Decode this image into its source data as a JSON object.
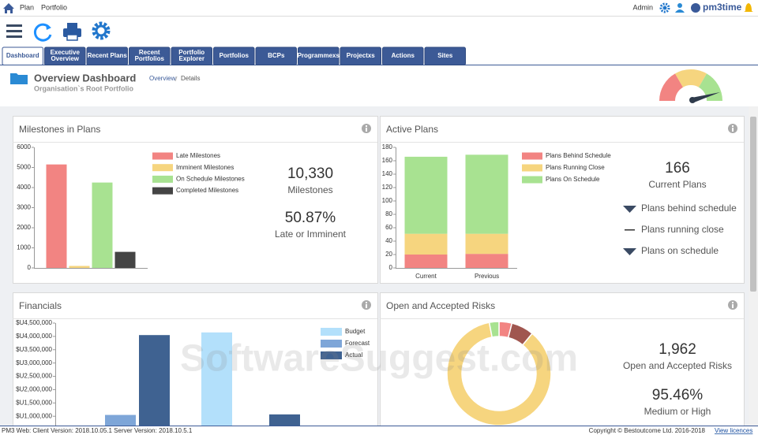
{
  "top_bar": {
    "links": [
      "Plan",
      "Portfolio"
    ],
    "user": "Admin",
    "logo": "pm3time"
  },
  "tabs": [
    [
      "Dashboard"
    ],
    [
      "Executive",
      "Overview"
    ],
    [
      "Recent Plans"
    ],
    [
      "Recent",
      "Portfolios"
    ],
    [
      "Portfolio",
      "Explorer"
    ],
    [
      "Portfolios"
    ],
    [
      "BCPs"
    ],
    [
      "Programmexs"
    ],
    [
      "Projectxs"
    ],
    [
      "Actions"
    ],
    [
      "Sites"
    ]
  ],
  "header": {
    "title": "Overview Dashboard",
    "subtitle": "Organisation`s Root Portfolio",
    "breadcrumb": [
      "Overview",
      "Details"
    ]
  },
  "chart_data": [
    {
      "type": "bar",
      "title": "Milestones in Plans",
      "categories": [
        null
      ],
      "series": [
        {
          "name": "Late Milestones",
          "color": "#f28482",
          "values": [
            5150
          ]
        },
        {
          "name": "Imminent Milestones",
          "color": "#f6d57f",
          "values": [
            100
          ]
        },
        {
          "name": "On Schedule Milestones",
          "color": "#a8e291",
          "values": [
            4250
          ]
        },
        {
          "name": "Completed Milestones",
          "color": "#444444",
          "values": [
            800
          ]
        }
      ],
      "ylim": [
        0,
        6000
      ],
      "yticks": [
        0,
        1000,
        2000,
        3000,
        4000,
        5000,
        6000
      ],
      "legend": "right",
      "annotations": [
        {
          "value": "10,330",
          "label": "Milestones"
        },
        {
          "value": "50.87%",
          "label": "Late or Imminent"
        }
      ]
    },
    {
      "type": "bar",
      "stacked": true,
      "title": "Active Plans",
      "categories": [
        "Current",
        "Previous"
      ],
      "series": [
        {
          "name": "Plans Behind Schedule",
          "color": "#f28482",
          "values": [
            20,
            21
          ]
        },
        {
          "name": "Plans Running Close",
          "color": "#f6d57f",
          "values": [
            31,
            30
          ]
        },
        {
          "name": "Plans On Schedule",
          "color": "#a8e291",
          "values": [
            115,
            118
          ]
        }
      ],
      "ylim": [
        0,
        180
      ],
      "yticks": [
        0,
        20,
        40,
        60,
        80,
        100,
        120,
        140,
        160,
        180
      ],
      "legend": "right",
      "annotations": [
        {
          "value": "166",
          "label": "Current Plans"
        }
      ],
      "status": [
        "Plans behind schedule",
        "Plans running close",
        "Plans on schedule"
      ]
    },
    {
      "type": "bar",
      "title": "Financials",
      "categories": [
        null,
        null
      ],
      "series": [
        {
          "name": "Budget",
          "color": "#b3e0fb",
          "values": [
            null,
            4150000
          ]
        },
        {
          "name": "Forecast",
          "color": "#7ea6d8",
          "values": [
            1050000,
            null
          ]
        },
        {
          "name": "Actual",
          "color": "#3f6291",
          "values": [
            4050000,
            1070000
          ]
        }
      ],
      "ylim": [
        0,
        4500000
      ],
      "yticks": [
        {
          "value": 1000000,
          "label": "$U1,000,000"
        },
        {
          "value": 1500000,
          "label": "$U1,500,000"
        },
        {
          "value": 2000000,
          "label": "$U2,000,000"
        },
        {
          "value": 2500000,
          "label": "$U2,500,000"
        },
        {
          "value": 3000000,
          "label": "$U3,000,000"
        },
        {
          "value": 3500000,
          "label": "$U3,500,000"
        },
        {
          "value": 4000000,
          "label": "$U4,000,000"
        },
        {
          "value": 4500000,
          "label": "$U4,500,000"
        }
      ],
      "legend": "right"
    },
    {
      "type": "pie",
      "donut": true,
      "title": "Open and Accepted Risks",
      "values": [
        4,
        7,
        86,
        3
      ],
      "colors": [
        "#f28482",
        "#a0564f",
        "#f6d57f",
        "#a8e291"
      ],
      "annotations": [
        {
          "value": "1,962",
          "label": "Open and Accepted Risks"
        },
        {
          "value": "95.46%",
          "label": "Medium or High"
        }
      ]
    }
  ],
  "footer": {
    "version": "PM3 Web: Client Version: 2018.10.05.1 Server Version: 2018.10.5.1",
    "copyright": "Copyright © Bestoutcome Ltd. 2016-2018",
    "link": "View licences"
  },
  "watermark": "SoftwareSuggest.com"
}
